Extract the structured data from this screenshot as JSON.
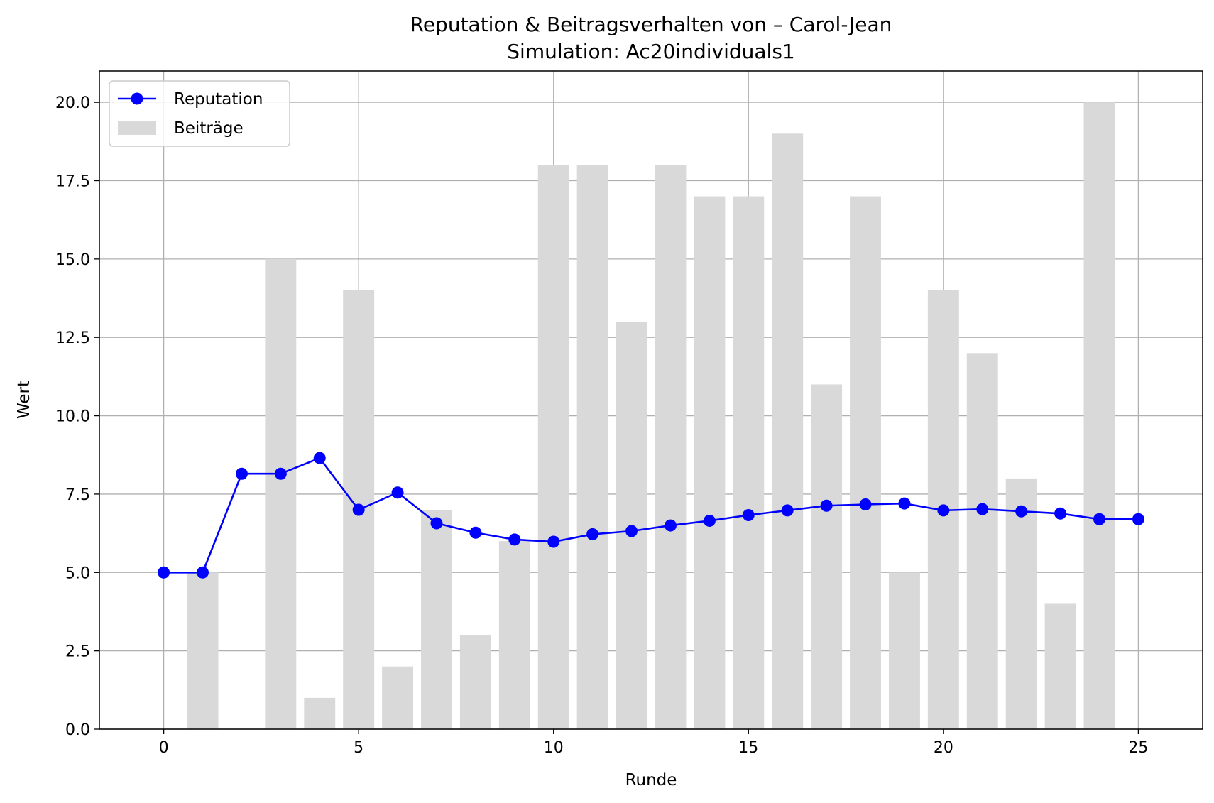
{
  "chart_data": {
    "type": "bar+line",
    "title": "Reputation & Beitragsverhalten von – Carol-Jean",
    "subtitle": "Simulation: Ac20individuals1",
    "xlabel": "Runde",
    "ylabel": "Wert",
    "xlim": [
      -1.65,
      26.65
    ],
    "ylim": [
      0,
      21
    ],
    "grid": true,
    "legend_position": "top-left",
    "x_ticks": [
      0,
      5,
      10,
      15,
      20,
      25
    ],
    "x_tick_labels": [
      "0",
      "5",
      "10",
      "15",
      "20",
      "25"
    ],
    "y_ticks": [
      0,
      2.5,
      5,
      7.5,
      10,
      12.5,
      15,
      17.5,
      20
    ],
    "y_tick_labels": [
      "0.0",
      "2.5",
      "5.0",
      "7.5",
      "10.0",
      "12.5",
      "15.0",
      "17.5",
      "20.0"
    ],
    "bars": {
      "name": "Beiträge",
      "color": "#d9d9d9",
      "x": [
        1,
        2,
        3,
        4,
        5,
        6,
        7,
        8,
        9,
        10,
        11,
        12,
        13,
        14,
        15,
        16,
        17,
        18,
        19,
        20,
        21,
        22,
        23,
        24
      ],
      "values": [
        5,
        0,
        15,
        1,
        14,
        2,
        7,
        3,
        6,
        18,
        18,
        13,
        18,
        17,
        17,
        19,
        11,
        17,
        5,
        14,
        12,
        8,
        4,
        20
      ]
    },
    "line": {
      "name": "Reputation",
      "color": "#0000ff",
      "x": [
        0,
        1,
        2,
        3,
        4,
        5,
        6,
        7,
        8,
        9,
        10,
        11,
        12,
        13,
        14,
        15,
        16,
        17,
        18,
        19,
        20,
        21,
        22,
        23,
        24,
        25
      ],
      "values": [
        5.0,
        5.0,
        8.15,
        8.15,
        8.65,
        7.0,
        7.55,
        6.57,
        6.27,
        6.05,
        5.98,
        6.22,
        6.32,
        6.5,
        6.65,
        6.83,
        6.98,
        7.13,
        7.17,
        7.2,
        6.98,
        7.02,
        6.95,
        6.88,
        6.7,
        6.7
      ]
    }
  }
}
